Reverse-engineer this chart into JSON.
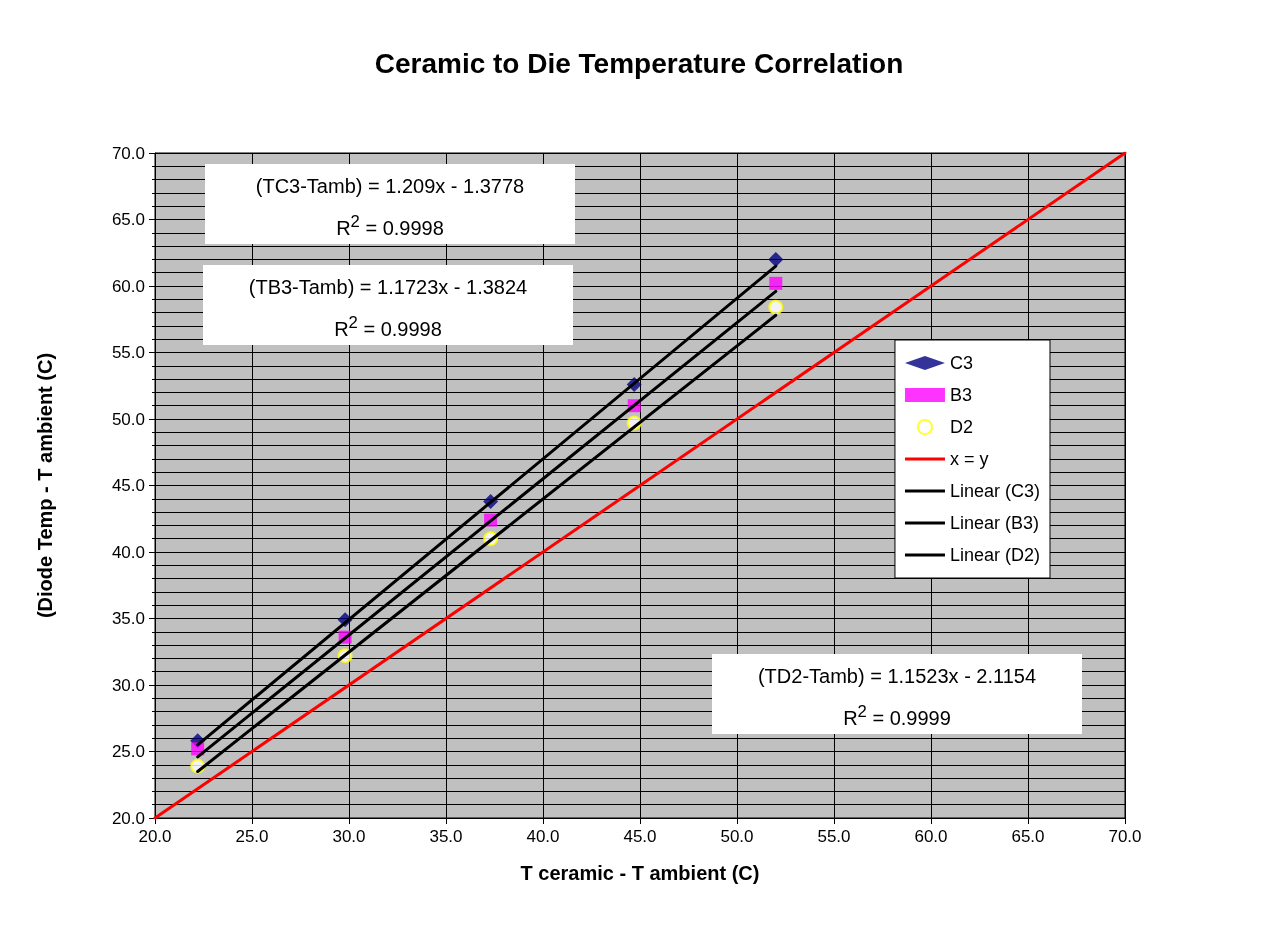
{
  "chart_data": {
    "type": "scatter",
    "title": "Ceramic to Die Temperature Correlation",
    "xlabel": "T ceramic - T ambient (C)",
    "ylabel": "(Diode Temp - T ambient (C)",
    "xlim": [
      20,
      70
    ],
    "xticks": [
      {
        "value": 20,
        "label": "20.0"
      },
      {
        "value": 25,
        "label": "25.0"
      },
      {
        "value": 30,
        "label": "30.0"
      },
      {
        "value": 35,
        "label": "35.0"
      },
      {
        "value": 40,
        "label": "40.0"
      },
      {
        "value": 45,
        "label": "45.0"
      },
      {
        "value": 50,
        "label": "50.0"
      },
      {
        "value": 55,
        "label": "55.0"
      },
      {
        "value": 60,
        "label": "60.0"
      },
      {
        "value": 65,
        "label": "65.0"
      },
      {
        "value": 70,
        "label": "70.0"
      }
    ],
    "ylim": [
      20,
      70
    ],
    "yticks": [
      {
        "value": 20,
        "label": "20.0"
      },
      {
        "value": 25,
        "label": "25.0"
      },
      {
        "value": 30,
        "label": "30.0"
      },
      {
        "value": 35,
        "label": "35.0"
      },
      {
        "value": 40,
        "label": "40.0"
      },
      {
        "value": 45,
        "label": "45.0"
      },
      {
        "value": 50,
        "label": "50.0"
      },
      {
        "value": 55,
        "label": "55.0"
      },
      {
        "value": 60,
        "label": "60.0"
      },
      {
        "value": 65,
        "label": "65.0"
      },
      {
        "value": 70,
        "label": "70.0"
      }
    ],
    "grid": true,
    "legend": "right",
    "series": [
      {
        "name": "C3",
        "marker": "diamond",
        "color": "#000080",
        "x": [
          22.2,
          29.8,
          37.3,
          44.7,
          52.0
        ],
        "values": [
          25.8,
          34.9,
          43.8,
          52.6,
          62.0
        ]
      },
      {
        "name": "B3",
        "marker": "square",
        "color": "#ff00ff",
        "x": [
          22.2,
          29.8,
          37.3,
          44.7,
          52.0
        ],
        "values": [
          25.2,
          33.6,
          42.4,
          51.0,
          60.2
        ]
      },
      {
        "name": "D2",
        "marker": "circle",
        "color": "#ffff00",
        "x": [
          22.2,
          29.8,
          37.3,
          44.7,
          52.0
        ],
        "values": [
          23.9,
          32.2,
          41.0,
          49.7,
          58.4
        ]
      },
      {
        "name": "x = y",
        "type": "line",
        "marker": "none",
        "color": "#ff0000",
        "x": [
          20,
          70
        ],
        "values": [
          20,
          70
        ]
      },
      {
        "name": "Linear (C3)",
        "type": "line",
        "marker": "none",
        "color": "#000000",
        "x": [
          22.2,
          52.0
        ],
        "values": [
          25.5,
          61.5
        ]
      },
      {
        "name": "Linear (B3)",
        "type": "line",
        "marker": "none",
        "color": "#000000",
        "x": [
          22.2,
          52.0
        ],
        "values": [
          24.6,
          59.6
        ]
      },
      {
        "name": "Linear (D2)",
        "type": "line",
        "marker": "none",
        "color": "#000000",
        "x": [
          22.2,
          52.0
        ],
        "values": [
          23.5,
          57.8
        ]
      }
    ],
    "annotations": [
      "(TC3-Tamb) = 1.209x - 1.3778\nR$^{2}$ = 0.9998",
      "(TB3-Tamb) = 1.1723x - 1.3824\nR$^{2}$ = 0.9998",
      "(TD2-Tamb) = 1.1523x - 2.1154\nR$^{2}$ = 0.9999"
    ]
  }
}
